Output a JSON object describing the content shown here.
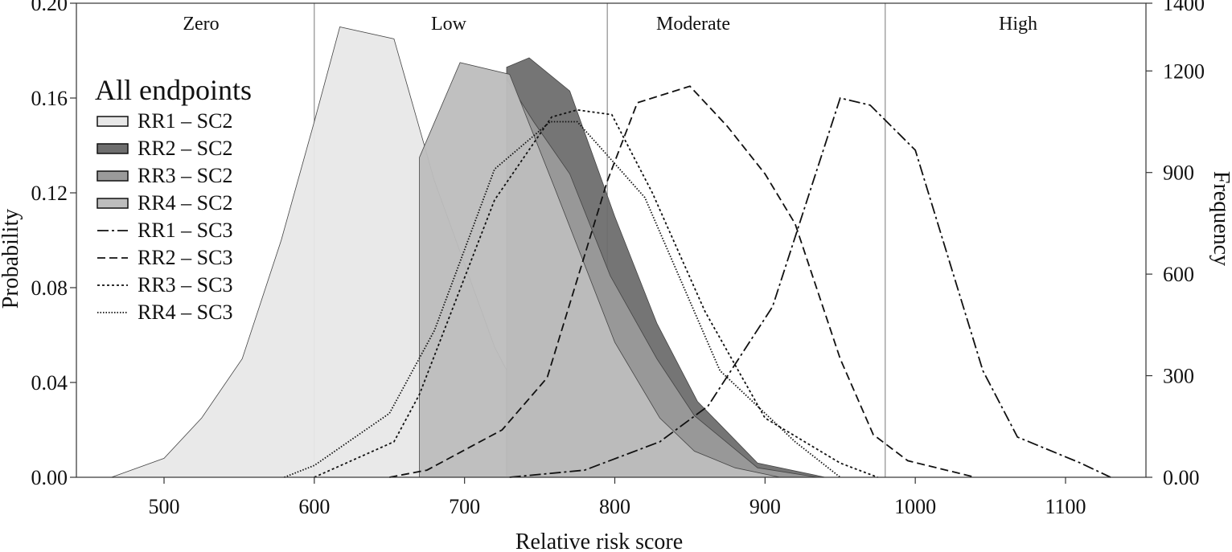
{
  "chart_data": {
    "type": "area",
    "xlabel": "Relative risk score",
    "ylabel_left": "Probability",
    "ylabel_right": "Frequency",
    "xlim": [
      450,
      1130
    ],
    "ylim_left": [
      0,
      0.2
    ],
    "ylim_right": [
      0,
      1400
    ],
    "x_ticks": [
      "500",
      "600",
      "700",
      "800",
      "900",
      "1000",
      "1100"
    ],
    "y_left_ticks": [
      "0.00",
      "0.04",
      "0.08",
      "0.12",
      "0.16",
      "0.20"
    ],
    "y_right_ticks": [
      "0.00",
      "300",
      "600",
      "900",
      "1200",
      "1400"
    ],
    "zones": {
      "boundaries": [
        600,
        795,
        980
      ],
      "labels": [
        "Zero",
        "Low",
        "Moderate",
        "High"
      ]
    },
    "legend": {
      "title": "All endpoints",
      "position": "upper-left"
    },
    "series": [
      {
        "name": "RR1 – SC2",
        "style": "filled",
        "fill": "#e8e8e8",
        "x": [
          465,
          500,
          525,
          552,
          578,
          600,
          617,
          653,
          680,
          720,
          760,
          790
        ],
        "y": [
          0.0,
          0.008,
          0.025,
          0.05,
          0.1,
          0.15,
          0.19,
          0.185,
          0.125,
          0.055,
          0.006,
          0.0
        ]
      },
      {
        "name": "RR2 – SC2",
        "style": "filled",
        "fill": "#6e6e6e",
        "x": [
          728,
          743,
          770,
          800,
          828,
          855,
          895,
          940
        ],
        "y": [
          0.173,
          0.177,
          0.163,
          0.11,
          0.065,
          0.032,
          0.006,
          0.0
        ]
      },
      {
        "name": "RR3 – SC2",
        "style": "filled",
        "fill": "#9a9a9a",
        "x": [
          728,
          746,
          770,
          797,
          828,
          853,
          895,
          935
        ],
        "y": [
          0.168,
          0.15,
          0.128,
          0.085,
          0.05,
          0.026,
          0.004,
          0.0
        ]
      },
      {
        "name": "RR4 – SC2",
        "style": "filled",
        "fill": "#bdbdbd",
        "x": [
          670,
          697,
          730,
          760,
          800,
          830,
          853,
          880,
          910
        ],
        "y": [
          0.135,
          0.175,
          0.17,
          0.122,
          0.057,
          0.025,
          0.011,
          0.004,
          0.0
        ]
      },
      {
        "name": "RR1 – SC3",
        "style": "dash-dot",
        "x": [
          730,
          780,
          830,
          862,
          905,
          950,
          970,
          1000,
          1045,
          1068,
          1110,
          1130
        ],
        "y": [
          0.0,
          0.003,
          0.015,
          0.03,
          0.072,
          0.16,
          0.157,
          0.138,
          0.045,
          0.017,
          0.006,
          0.0
        ]
      },
      {
        "name": "RR2 – SC3",
        "style": "dashed",
        "x": [
          650,
          675,
          725,
          755,
          795,
          815,
          850,
          875,
          900,
          920,
          950,
          972,
          995,
          1040
        ],
        "y": [
          0.0,
          0.003,
          0.02,
          0.042,
          0.125,
          0.158,
          0.165,
          0.148,
          0.128,
          0.107,
          0.05,
          0.018,
          0.007,
          0.0
        ]
      },
      {
        "name": "RR3 – SC3",
        "style": "dotted",
        "x": [
          600,
          653,
          670,
          720,
          758,
          775,
          798,
          825,
          860,
          900,
          950,
          975
        ],
        "y": [
          0.0,
          0.015,
          0.035,
          0.117,
          0.152,
          0.155,
          0.153,
          0.12,
          0.07,
          0.025,
          0.006,
          0.0
        ]
      },
      {
        "name": "RR4 – SC3",
        "style": "fine-dotted",
        "x": [
          580,
          600,
          650,
          680,
          720,
          757,
          775,
          792,
          820,
          870,
          920,
          950
        ],
        "y": [
          0.0,
          0.005,
          0.027,
          0.062,
          0.13,
          0.15,
          0.15,
          0.138,
          0.118,
          0.045,
          0.015,
          0.0
        ]
      }
    ]
  }
}
